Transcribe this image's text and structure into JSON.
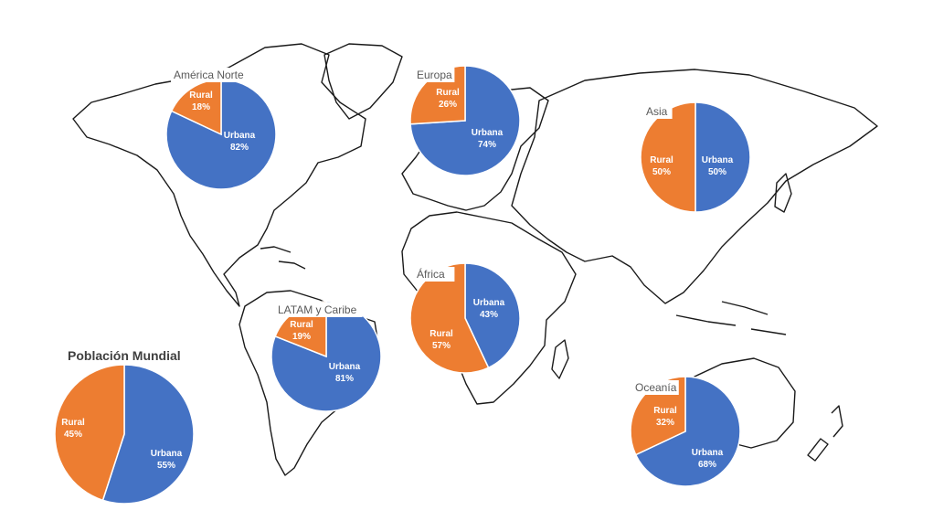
{
  "chart_data": [
    {
      "type": "pie",
      "title": "América Norte",
      "slices": [
        {
          "label": "Urbana",
          "value": 82,
          "text": "82%",
          "color": "#4472c4"
        },
        {
          "label": "Rural",
          "value": 18,
          "text": "18%",
          "color": "#ed7d31"
        }
      ]
    },
    {
      "type": "pie",
      "title": "Europa",
      "slices": [
        {
          "label": "Urbana",
          "value": 74,
          "text": "74%",
          "color": "#4472c4"
        },
        {
          "label": "Rural",
          "value": 26,
          "text": "26%",
          "color": "#ed7d31"
        }
      ]
    },
    {
      "type": "pie",
      "title": "Asia",
      "slices": [
        {
          "label": "Urbana",
          "value": 50,
          "text": "50%",
          "color": "#4472c4"
        },
        {
          "label": "Rural",
          "value": 50,
          "text": "50%",
          "color": "#ed7d31"
        }
      ]
    },
    {
      "type": "pie",
      "title": "África",
      "slices": [
        {
          "label": "Urbana",
          "value": 43,
          "text": "43%",
          "color": "#4472c4"
        },
        {
          "label": "Rural",
          "value": 57,
          "text": "57%",
          "color": "#ed7d31"
        }
      ]
    },
    {
      "type": "pie",
      "title": "LATAM y Caribe",
      "slices": [
        {
          "label": "Urbana",
          "value": 81,
          "text": "81%",
          "color": "#4472c4"
        },
        {
          "label": "Rural",
          "value": 19,
          "text": "19%",
          "color": "#ed7d31"
        }
      ]
    },
    {
      "type": "pie",
      "title": "Oceanía",
      "slices": [
        {
          "label": "Urbana",
          "value": 68,
          "text": "68%",
          "color": "#4472c4"
        },
        {
          "label": "Rural",
          "value": 32,
          "text": "32%",
          "color": "#ed7d31"
        }
      ]
    },
    {
      "type": "pie",
      "title": "Población Mundial",
      "slices": [
        {
          "label": "Urbana",
          "value": 55,
          "text": "55%",
          "color": "#4472c4"
        },
        {
          "label": "Rural",
          "value": 45,
          "text": "45%",
          "color": "#ed7d31"
        }
      ]
    }
  ]
}
